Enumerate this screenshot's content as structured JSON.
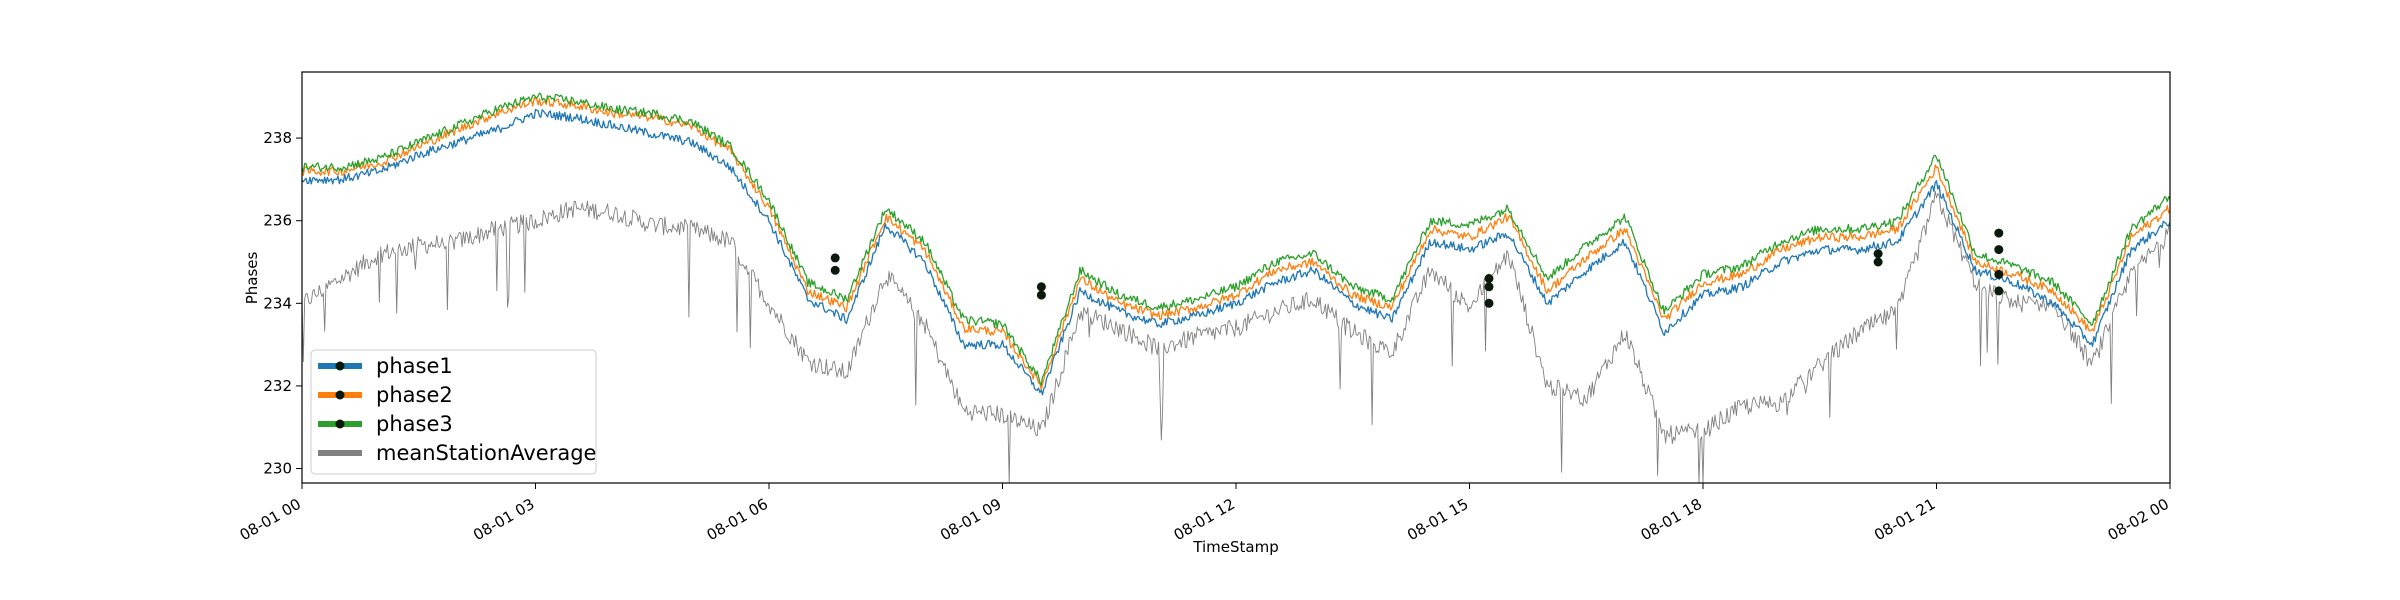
{
  "chart_data": {
    "type": "line",
    "xlabel": "TimeStamp",
    "ylabel": "Phases",
    "x_ticks": [
      "08-01 00",
      "08-01 03",
      "08-01 06",
      "08-01 09",
      "08-01 12",
      "08-01 15",
      "08-01 18",
      "08-01 21",
      "08-02 00"
    ],
    "y_ticks": [
      "230",
      "232",
      "234",
      "236",
      "238"
    ],
    "xlim": [
      "2023-08-01 00:00",
      "2023-08-02 00:00"
    ],
    "ylim": [
      229.65,
      239.6
    ],
    "grid": false,
    "legend": {
      "placement": "lower-left"
    },
    "x_hours": [
      0,
      0.5,
      1,
      1.5,
      2,
      2.5,
      3,
      3.5,
      4,
      4.5,
      5,
      5.5,
      6,
      6.5,
      7,
      7.5,
      8,
      8.5,
      9,
      9.5,
      10,
      10.5,
      11,
      11.5,
      12,
      12.5,
      13,
      13.5,
      14,
      14.5,
      15,
      15.5,
      16,
      16.5,
      17,
      17.5,
      18,
      18.5,
      19,
      19.5,
      20,
      20.5,
      21,
      21.5,
      22,
      22.5,
      23,
      23.5,
      24
    ],
    "series": [
      {
        "name": "phase1",
        "color": "#1f77b4",
        "values": [
          237.0,
          237.0,
          237.2,
          237.6,
          237.9,
          238.2,
          238.6,
          238.5,
          238.3,
          238.1,
          237.9,
          237.3,
          236.0,
          234.1,
          233.6,
          235.9,
          235.0,
          233.0,
          233.0,
          231.8,
          234.3,
          233.8,
          233.5,
          233.7,
          234.0,
          234.5,
          234.8,
          234.0,
          233.6,
          235.5,
          235.3,
          235.7,
          234.0,
          234.8,
          235.5,
          233.3,
          234.2,
          234.4,
          235.0,
          235.3,
          235.3,
          235.5,
          236.9,
          234.8,
          234.5,
          234.0,
          233.0,
          235.3,
          236.0
        ]
      },
      {
        "name": "phase2",
        "color": "#ff7f0e",
        "values": [
          237.2,
          237.2,
          237.4,
          237.8,
          238.2,
          238.6,
          238.9,
          238.8,
          238.6,
          238.5,
          238.3,
          237.7,
          236.3,
          234.3,
          233.9,
          236.1,
          235.3,
          233.4,
          233.3,
          232.0,
          234.6,
          234.0,
          233.7,
          233.9,
          234.2,
          234.8,
          235.0,
          234.2,
          233.9,
          235.8,
          235.6,
          236.1,
          234.3,
          235.1,
          235.8,
          233.6,
          234.5,
          234.7,
          235.3,
          235.6,
          235.6,
          235.8,
          237.3,
          235.0,
          234.7,
          234.3,
          233.3,
          235.6,
          236.3
        ]
      },
      {
        "name": "phase3",
        "color": "#2ca02c",
        "values": [
          237.3,
          237.3,
          237.5,
          237.9,
          238.3,
          238.7,
          239.0,
          238.9,
          238.7,
          238.6,
          238.4,
          237.8,
          236.5,
          234.5,
          234.1,
          236.3,
          235.5,
          233.6,
          233.5,
          232.1,
          234.8,
          234.2,
          233.9,
          234.1,
          234.4,
          235.0,
          235.2,
          234.4,
          234.1,
          236.0,
          235.9,
          236.3,
          234.6,
          235.4,
          236.1,
          233.8,
          234.7,
          234.9,
          235.5,
          235.8,
          235.8,
          236.0,
          237.6,
          235.2,
          234.9,
          234.5,
          233.5,
          235.8,
          236.6
        ]
      },
      {
        "name": "meanStationAverage",
        "color": "#808080",
        "values": [
          234.0,
          234.6,
          235.2,
          235.4,
          235.5,
          235.8,
          236.0,
          236.3,
          236.2,
          235.9,
          235.8,
          235.5,
          234.0,
          232.6,
          232.3,
          234.7,
          233.5,
          231.4,
          231.3,
          230.9,
          233.8,
          233.4,
          232.9,
          233.2,
          233.4,
          233.8,
          234.1,
          233.3,
          232.8,
          234.8,
          233.9,
          235.2,
          232.0,
          231.7,
          233.3,
          230.8,
          230.9,
          231.5,
          231.6,
          232.5,
          233.3,
          233.8,
          236.6,
          234.5,
          234.0,
          234.0,
          232.5,
          234.7,
          235.7
        ]
      }
    ],
    "markers": [
      {
        "x_hour": 6.85,
        "y": 235.1
      },
      {
        "x_hour": 6.85,
        "y": 234.8
      },
      {
        "x_hour": 9.5,
        "y": 234.4
      },
      {
        "x_hour": 9.5,
        "y": 234.2
      },
      {
        "x_hour": 15.25,
        "y": 234.6
      },
      {
        "x_hour": 15.25,
        "y": 234.4
      },
      {
        "x_hour": 15.25,
        "y": 234.0
      },
      {
        "x_hour": 20.25,
        "y": 235.2
      },
      {
        "x_hour": 20.25,
        "y": 235.0
      },
      {
        "x_hour": 21.8,
        "y": 235.7
      },
      {
        "x_hour": 21.8,
        "y": 235.3
      },
      {
        "x_hour": 21.8,
        "y": 234.7
      },
      {
        "x_hour": 21.8,
        "y": 234.3
      }
    ]
  }
}
